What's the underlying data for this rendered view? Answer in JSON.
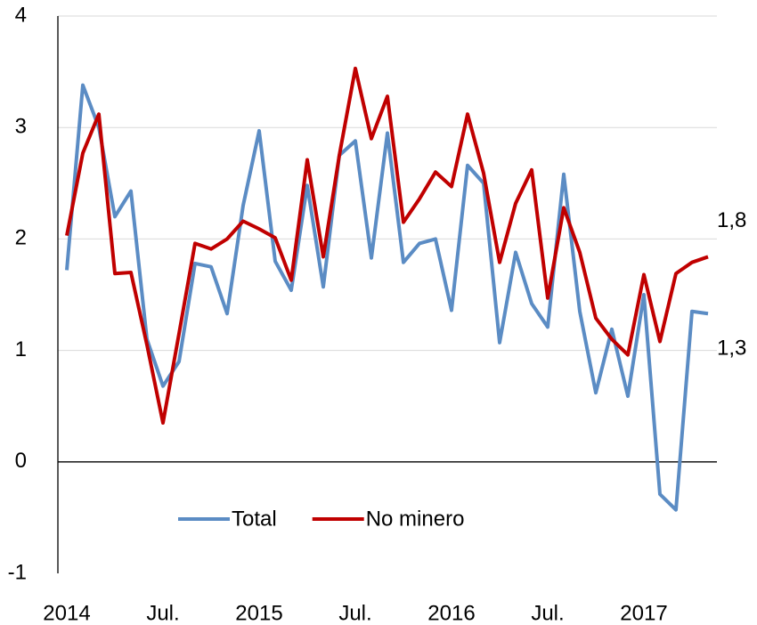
{
  "chart_data": {
    "type": "line",
    "categories": [
      "2014",
      null,
      null,
      null,
      null,
      null,
      "Jul.",
      null,
      null,
      null,
      null,
      null,
      "2015",
      null,
      null,
      null,
      null,
      null,
      "Jul.",
      null,
      null,
      null,
      null,
      null,
      "2016",
      null,
      null,
      null,
      null,
      null,
      "Jul.",
      null,
      null,
      null,
      null,
      null,
      "2017",
      null,
      null,
      null,
      null
    ],
    "series": [
      {
        "name": "Total",
        "color": "#5b8cc4",
        "values": [
          1.72,
          3.38,
          3.0,
          2.2,
          2.43,
          1.1,
          0.68,
          0.9,
          1.78,
          1.75,
          1.33,
          2.3,
          2.97,
          1.8,
          1.54,
          2.48,
          1.57,
          2.75,
          2.88,
          1.83,
          2.95,
          1.79,
          1.96,
          2.0,
          1.36,
          2.66,
          2.5,
          1.07,
          1.88,
          1.42,
          1.21,
          2.58,
          1.35,
          0.62,
          1.19,
          0.59,
          1.5,
          -0.29,
          -0.43,
          1.35,
          1.33
        ],
        "value_labels": [
          null,
          null,
          null,
          null,
          null,
          null,
          null,
          null,
          null,
          null,
          null,
          null,
          null,
          null,
          null,
          null,
          null,
          null,
          null,
          null,
          null,
          null,
          null,
          null,
          null,
          null,
          null,
          null,
          null,
          null,
          null,
          null,
          null,
          null,
          null,
          null,
          null,
          null,
          null,
          null,
          "1,3"
        ]
      },
      {
        "name": "No minero",
        "color": "#c00000",
        "values": [
          2.03,
          2.77,
          3.12,
          1.69,
          1.7,
          1.05,
          0.35,
          1.15,
          1.96,
          1.91,
          2.0,
          2.16,
          2.09,
          2.01,
          1.63,
          2.71,
          1.84,
          2.75,
          3.53,
          2.9,
          3.28,
          2.15,
          2.36,
          2.6,
          2.47,
          3.12,
          2.59,
          1.79,
          2.32,
          2.62,
          1.47,
          2.28,
          1.88,
          1.29,
          1.1,
          0.96,
          1.68,
          1.08,
          1.69,
          1.79,
          1.84
        ],
        "value_labels": [
          null,
          null,
          null,
          null,
          null,
          null,
          null,
          null,
          null,
          null,
          null,
          null,
          null,
          null,
          null,
          null,
          null,
          null,
          null,
          null,
          null,
          null,
          null,
          null,
          null,
          null,
          null,
          null,
          null,
          null,
          null,
          null,
          null,
          null,
          null,
          null,
          null,
          null,
          null,
          null,
          "1,8"
        ]
      }
    ],
    "ylim": [
      -1,
      4
    ],
    "yticks": [
      -1,
      0,
      1,
      2,
      3,
      4
    ],
    "grid": true
  }
}
